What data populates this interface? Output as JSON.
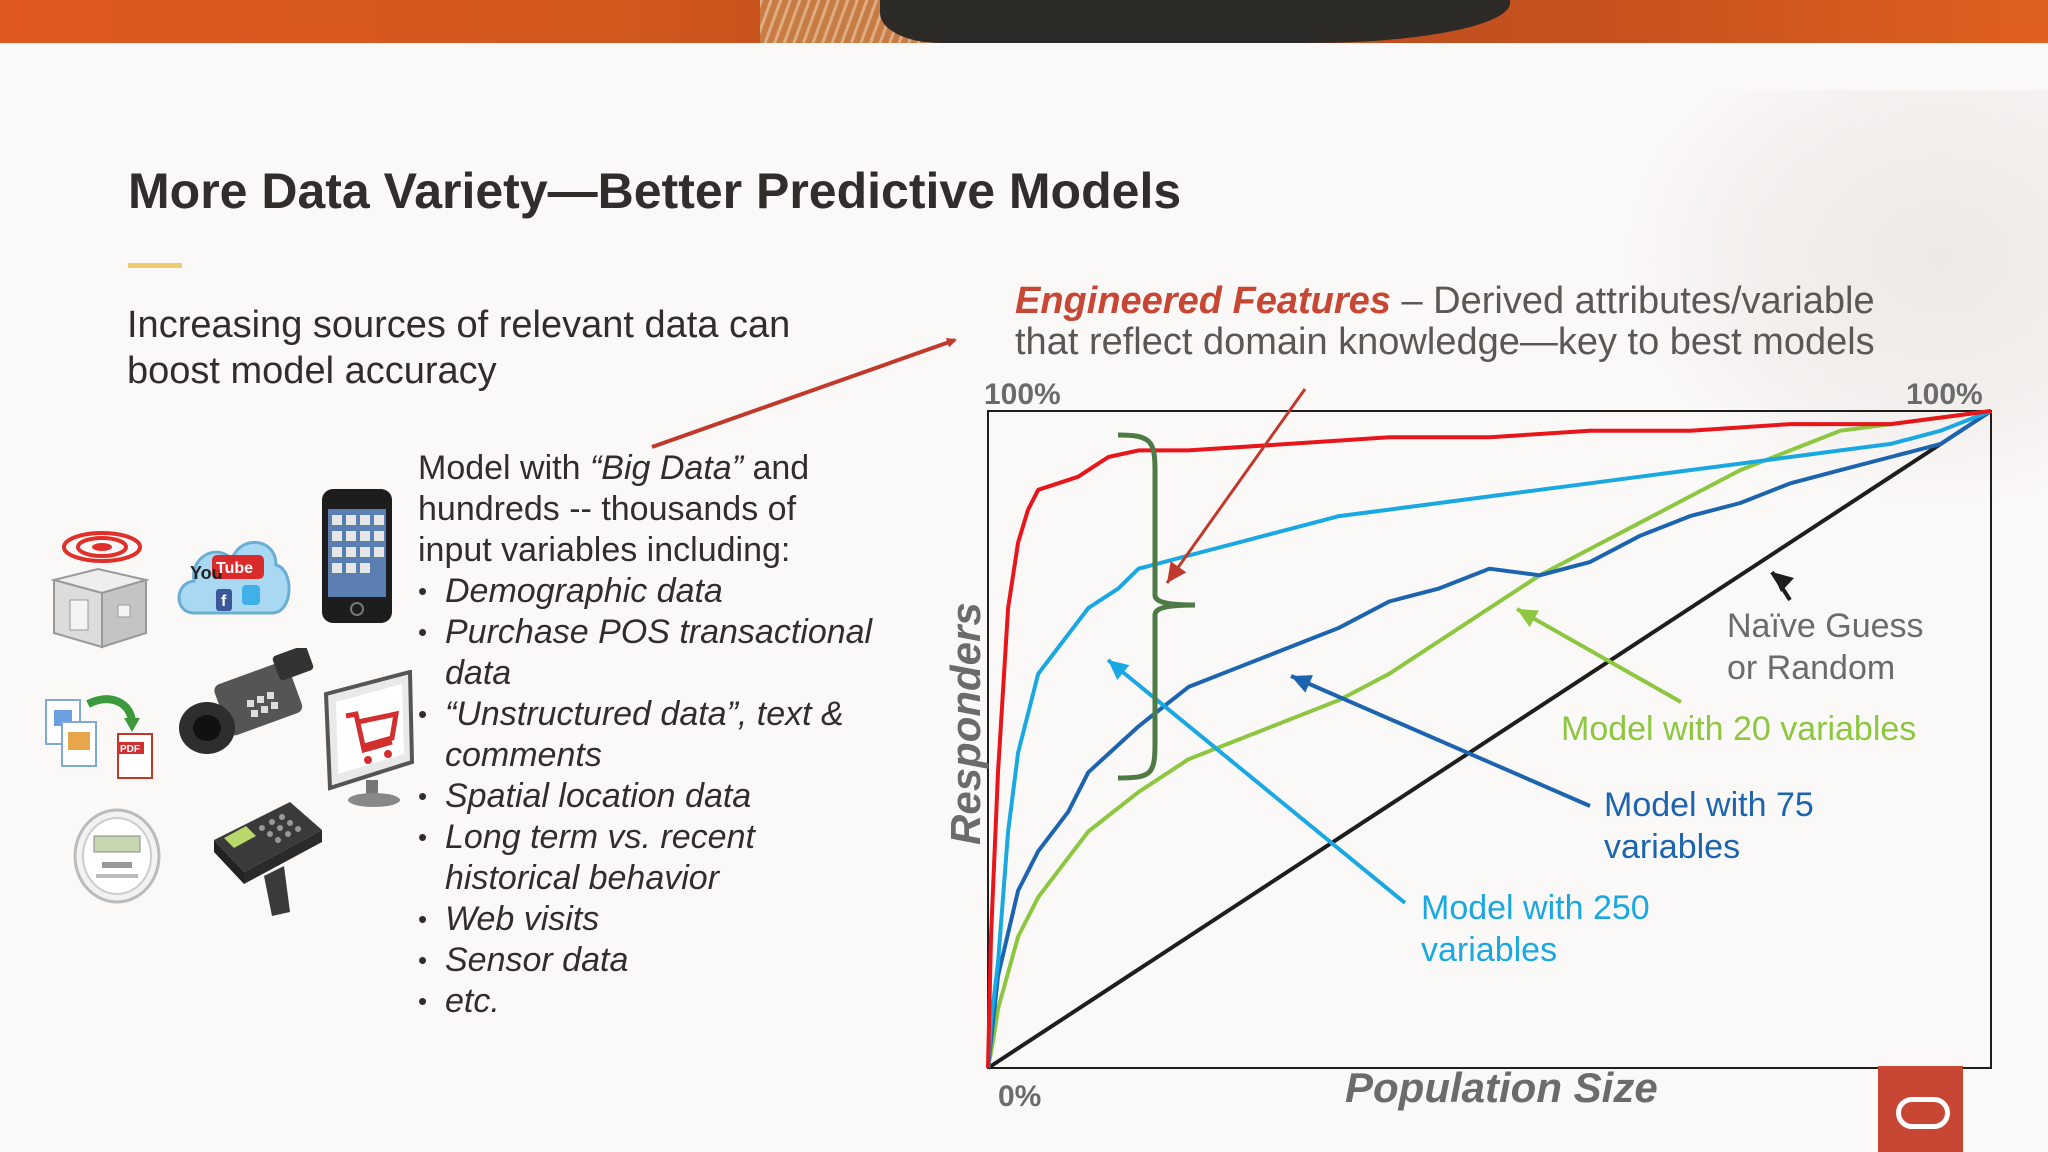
{
  "slide": {
    "title": "More Data Variety—Better Predictive Models",
    "intro": "Increasing sources of relevant data can boost model accuracy"
  },
  "model_box": {
    "line1_prefix": "Model with ",
    "line1_italic": "“Big Data”",
    "line1_suffix": " and",
    "line2": "hundreds -- thousands of",
    "line3": "input variables including:",
    "bullets": [
      "Demographic data",
      "Purchase POS transactional",
      "data",
      "“Unstructured data”, text &",
      "comments",
      "Spatial location data",
      "Long term vs. recent",
      "historical behavior",
      "Web visits",
      "Sensor data",
      "etc."
    ]
  },
  "engineered": {
    "highlight": "Engineered Features",
    "rest": " – Derived attributes/variable",
    "line2": "that reflect domain knowledge—key to best models"
  },
  "icons": [
    "radar-building-icon",
    "youtube-social-cloud-icon",
    "smartphone-icon",
    "documents-pdf-icon",
    "video-camera-icon",
    "shopping-cart-monitor-icon",
    "smart-meter-icon",
    "barcode-scanner-icon"
  ],
  "colors": {
    "red": "#e8151b",
    "light_blue": "#1aa8e2",
    "dark_blue": "#1c64b0",
    "green": "#8dc63f",
    "brace": "#4e7a46",
    "arrow_red": "#c0392b",
    "accent": "#c74634"
  },
  "chart_data": {
    "type": "line",
    "xlabel": "Population Size",
    "ylabel": "Responders",
    "x_start_label": "0%",
    "y_top_label": "100%",
    "x_end_label": "100%",
    "xlim": [
      0,
      100
    ],
    "ylim": [
      0,
      100
    ],
    "grid": false,
    "series": [
      {
        "key": "model20",
        "color": "#8dc63f",
        "x": [
          0,
          0.5,
          1,
          3,
          5,
          8,
          10,
          15,
          20,
          25,
          30,
          35,
          40,
          45,
          50,
          55,
          60,
          65,
          70,
          75,
          80,
          85,
          90,
          95,
          100
        ],
        "y": [
          0,
          4,
          9,
          20,
          26,
          32,
          36,
          42,
          47,
          50,
          53,
          56,
          60,
          65,
          70,
          75,
          79,
          83,
          87,
          91,
          94,
          97,
          98,
          99,
          100
        ]
      },
      {
        "key": "model75",
        "color": "#1c64b0",
        "x": [
          0,
          0.5,
          1,
          3,
          5,
          8,
          10,
          15,
          20,
          25,
          30,
          35,
          40,
          45,
          50,
          55,
          60,
          65,
          70,
          75,
          80,
          85,
          90,
          95,
          100
        ],
        "y": [
          0,
          7,
          14,
          27,
          33,
          39,
          45,
          52,
          58,
          61,
          64,
          67,
          71,
          73,
          76,
          75,
          77,
          81,
          84,
          86,
          89,
          91,
          93,
          95,
          100
        ]
      },
      {
        "key": "model250",
        "color": "#1aa8e2",
        "x": [
          0,
          0.3,
          1,
          2,
          3,
          5,
          8,
          10,
          13,
          15,
          20,
          25,
          30,
          35,
          40,
          45,
          50,
          55,
          60,
          65,
          70,
          75,
          80,
          85,
          90,
          95,
          100
        ],
        "y": [
          0,
          7,
          16,
          36,
          48,
          60,
          66,
          70,
          73,
          76,
          78,
          80,
          82,
          84,
          85,
          86,
          87,
          88,
          89,
          90,
          91,
          92,
          93,
          94,
          95,
          97,
          100
        ]
      },
      {
        "key": "model_best",
        "color": "#e8151b",
        "x": [
          0,
          0.3,
          1,
          2,
          3,
          4,
          5,
          7,
          9,
          10,
          12,
          15,
          20,
          30,
          40,
          50,
          60,
          70,
          80,
          90,
          100
        ],
        "y": [
          0,
          20,
          45,
          70,
          80,
          85,
          88,
          89,
          90,
          91,
          93,
          94,
          94,
          95,
          96,
          96,
          97,
          97,
          98,
          98,
          100
        ]
      },
      {
        "key": "naive",
        "color": "#1e1e1e",
        "x": [
          0,
          100
        ],
        "y": [
          0,
          100
        ]
      }
    ],
    "annotations": {
      "naive_l1": "Naïve Guess",
      "naive_l2": "or Random",
      "model20": "Model with 20 variables",
      "model75_l1": "Model with 75",
      "model75_l2": "variables",
      "model250_l1": "Model with 250",
      "model250_l2": "variables"
    }
  }
}
